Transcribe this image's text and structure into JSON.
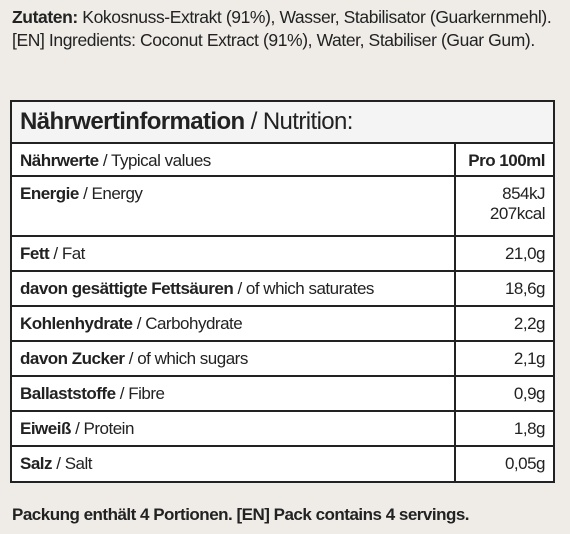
{
  "ingredients": {
    "de_label": "Zutaten:",
    "de_text": " Kokosnuss-Extrakt (91%), Wasser, Stabilisator (Guarkernmehl). [EN] Ingredients: Coconut Extract (91%), Water, Stabiliser (Guar Gum)."
  },
  "table": {
    "title_bold": "Nährwertinformation",
    "title_rest": " / Nutrition:",
    "header": {
      "label_bold": "Nährwerte",
      "label_rest": " / Typical values",
      "value": "Pro 100ml"
    },
    "rows": [
      {
        "label_bold": "Energie",
        "label_rest": " / Energy",
        "value_1": "854kJ",
        "value_2": "207kcal"
      },
      {
        "label_bold": "Fett",
        "label_rest": " / Fat",
        "value_1": "21,0g"
      },
      {
        "label_bold": "davon gesättigte Fettsäuren",
        "label_rest": " / of which saturates",
        "value_1": "18,6g"
      },
      {
        "label_bold": "Kohlenhydrate",
        "label_rest": " / Carbohydrate",
        "value_1": "2,2g"
      },
      {
        "label_bold": "davon Zucker",
        "label_rest": " / of which sugars",
        "value_1": "2,1g"
      },
      {
        "label_bold": "Ballaststoffe",
        "label_rest": " / Fibre",
        "value_1": "0,9g"
      },
      {
        "label_bold": "Eiweiß",
        "label_rest": " / Protein",
        "value_1": "1,8g"
      },
      {
        "label_bold": "Salz",
        "label_rest": " / Salt",
        "value_1": "0,05g"
      }
    ]
  },
  "footer": {
    "text": "Packung enthält 4 Portionen. [EN] Pack contains 4 servings."
  },
  "colors": {
    "background": "#efece8",
    "table_bg": "#ffffff",
    "title_bg": "#f4f4f4",
    "text": "#222222"
  }
}
